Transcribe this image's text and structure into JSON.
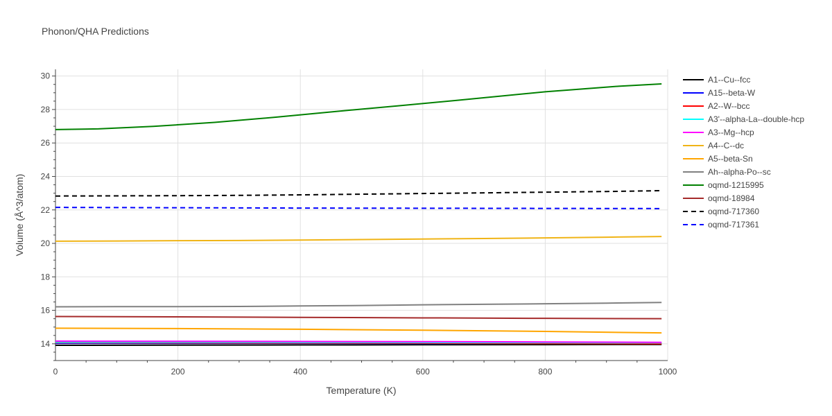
{
  "chart_data": {
    "type": "line",
    "title": "Phonon/QHA Predictions",
    "xlabel": "Temperature (K)",
    "ylabel": "Volume (Å^3/atom)",
    "xlim": [
      0,
      1000
    ],
    "ylim": [
      13,
      30.4
    ],
    "xticks": [
      0,
      200,
      400,
      600,
      800,
      1000
    ],
    "yticks": [
      14,
      16,
      18,
      20,
      22,
      24,
      26,
      28,
      30
    ],
    "grid": true,
    "legend_position": "right",
    "series": [
      {
        "name": "A1--Cu--fcc",
        "color": "#000000",
        "dash": "solid",
        "x": [
          0,
          200,
          400,
          600,
          800,
          990
        ],
        "y": [
          13.91,
          13.92,
          13.93,
          13.94,
          13.95,
          13.96
        ]
      },
      {
        "name": "A15--beta-W",
        "color": "#0000ff",
        "dash": "solid",
        "x": [
          0,
          200,
          400,
          600,
          800,
          990
        ],
        "y": [
          14.03,
          14.03,
          14.03,
          14.02,
          14.02,
          14.02
        ]
      },
      {
        "name": "A2--W--bcc",
        "color": "#ff0000",
        "dash": "solid",
        "x": [
          0,
          200,
          400,
          600,
          800,
          990
        ],
        "y": [
          14.07,
          14.06,
          14.05,
          14.04,
          14.02,
          14.0
        ]
      },
      {
        "name": "A3'--alpha-La--double-hcp",
        "color": "#00ffff",
        "dash": "solid",
        "x": [
          0,
          200,
          400,
          600,
          800,
          990
        ],
        "y": [
          14.1,
          14.1,
          14.09,
          14.08,
          14.07,
          14.06
        ]
      },
      {
        "name": "A3--Mg--hcp",
        "color": "#ff00ff",
        "dash": "solid",
        "x": [
          0,
          200,
          400,
          600,
          800,
          990
        ],
        "y": [
          14.16,
          14.15,
          14.14,
          14.13,
          14.11,
          14.09
        ]
      },
      {
        "name": "A4--C--dc",
        "color": "#f0b416",
        "dash": "solid",
        "x": [
          0,
          100,
          200,
          300,
          400,
          500,
          600,
          700,
          800,
          900,
          990
        ],
        "y": [
          20.13,
          20.14,
          20.16,
          20.17,
          20.2,
          20.23,
          20.26,
          20.29,
          20.33,
          20.37,
          20.41
        ]
      },
      {
        "name": "A5--beta-Sn",
        "color": "#ffa500",
        "dash": "solid",
        "x": [
          0,
          200,
          400,
          600,
          800,
          990
        ],
        "y": [
          14.93,
          14.91,
          14.87,
          14.81,
          14.74,
          14.65
        ]
      },
      {
        "name": "Ah--alpha-Po--sc",
        "color": "#808080",
        "dash": "solid",
        "x": [
          0,
          100,
          200,
          300,
          400,
          500,
          600,
          700,
          800,
          900,
          990
        ],
        "y": [
          16.21,
          16.22,
          16.22,
          16.23,
          16.26,
          16.29,
          16.33,
          16.36,
          16.39,
          16.43,
          16.47
        ]
      },
      {
        "name": "oqmd-1215995",
        "color": "#008000",
        "dash": "solid",
        "x": [
          0,
          70,
          160,
          260,
          360,
          460,
          560,
          660,
          800,
          920,
          990
        ],
        "y": [
          26.8,
          26.84,
          26.99,
          27.23,
          27.54,
          27.89,
          28.22,
          28.56,
          29.06,
          29.39,
          29.53
        ]
      },
      {
        "name": "oqmd-18984",
        "color": "#a52a2a",
        "dash": "solid",
        "x": [
          0,
          200,
          400,
          600,
          800,
          990
        ],
        "y": [
          15.63,
          15.61,
          15.58,
          15.55,
          15.52,
          15.5
        ]
      },
      {
        "name": "oqmd-717360",
        "color": "#000000",
        "dash": "dash",
        "x": [
          0,
          100,
          200,
          300,
          400,
          500,
          600,
          700,
          800,
          900,
          990
        ],
        "y": [
          22.83,
          22.84,
          22.85,
          22.87,
          22.9,
          22.94,
          22.98,
          23.02,
          23.06,
          23.1,
          23.15
        ]
      },
      {
        "name": "oqmd-717361",
        "color": "#0000ff",
        "dash": "dash",
        "x": [
          0,
          200,
          400,
          600,
          800,
          990
        ],
        "y": [
          22.15,
          22.13,
          22.11,
          22.1,
          22.09,
          22.08
        ]
      }
    ]
  }
}
